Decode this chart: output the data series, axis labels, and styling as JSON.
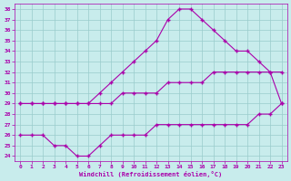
{
  "xlabel": "Windchill (Refroidissement éolien,°C)",
  "xlim": [
    -0.5,
    23.5
  ],
  "ylim": [
    23.5,
    38.5
  ],
  "xticks": [
    0,
    1,
    2,
    3,
    4,
    5,
    6,
    7,
    8,
    9,
    10,
    11,
    12,
    13,
    14,
    15,
    16,
    17,
    18,
    19,
    20,
    21,
    22,
    23
  ],
  "yticks": [
    24,
    25,
    26,
    27,
    28,
    29,
    30,
    31,
    32,
    33,
    34,
    35,
    36,
    37,
    38
  ],
  "line_color": "#aa00aa",
  "bg_color": "#c8ecec",
  "grid_color": "#99cccc",
  "line_top_x": [
    0,
    1,
    2,
    3,
    4,
    5,
    6,
    7,
    8,
    9,
    10,
    11,
    12,
    13,
    14,
    15,
    16,
    17,
    18,
    19,
    20,
    21,
    22,
    23
  ],
  "line_top_y": [
    29,
    29,
    29,
    29,
    29,
    29,
    29,
    30,
    31,
    32,
    33,
    34,
    35,
    37,
    38,
    38,
    37,
    36,
    35,
    34,
    34,
    33,
    32,
    29
  ],
  "line_mid_x": [
    0,
    1,
    2,
    3,
    4,
    5,
    6,
    7,
    8,
    9,
    10,
    11,
    12,
    13,
    14,
    15,
    16,
    17,
    18,
    19,
    20,
    21,
    22,
    23
  ],
  "line_mid_y": [
    29,
    29,
    29,
    29,
    29,
    29,
    29,
    29,
    29,
    30,
    30,
    30,
    30,
    31,
    31,
    31,
    31,
    32,
    32,
    32,
    32,
    32,
    32,
    32
  ],
  "line_bot_x": [
    0,
    1,
    2,
    3,
    4,
    5,
    6,
    7,
    8,
    9,
    10,
    11,
    12,
    13,
    14,
    15,
    16,
    17,
    18,
    19,
    20,
    21,
    22,
    23
  ],
  "line_bot_y": [
    26,
    26,
    26,
    25,
    25,
    24,
    24,
    25,
    26,
    26,
    26,
    26,
    27,
    27,
    27,
    27,
    27,
    27,
    27,
    27,
    27,
    28,
    28,
    29
  ],
  "marker": "+"
}
